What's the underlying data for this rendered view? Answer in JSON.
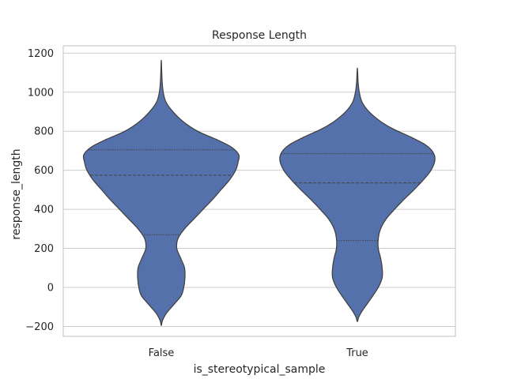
{
  "chart_data": {
    "type": "violin",
    "title": "Response Length",
    "xlabel": "is_stereotypical_sample",
    "ylabel": "response_length",
    "ylim": [
      -250,
      1230
    ],
    "yticks": [
      -200,
      0,
      200,
      400,
      600,
      800,
      1000,
      1200
    ],
    "ytick_labels": [
      "−200",
      "0",
      "200",
      "400",
      "600",
      "800",
      "1000",
      "1200"
    ],
    "grid": true,
    "color": "#5471ab",
    "categories": [
      "False",
      "True"
    ],
    "violins": [
      {
        "category": "False",
        "quartiles": [
          270,
          575,
          705
        ],
        "density": [
          [
            -195,
            0.0
          ],
          [
            -170,
            0.015
          ],
          [
            -130,
            0.07
          ],
          [
            -80,
            0.18
          ],
          [
            -40,
            0.26
          ],
          [
            0,
            0.29
          ],
          [
            50,
            0.305
          ],
          [
            100,
            0.3
          ],
          [
            150,
            0.25
          ],
          [
            200,
            0.2
          ],
          [
            250,
            0.215
          ],
          [
            300,
            0.3
          ],
          [
            350,
            0.42
          ],
          [
            400,
            0.54
          ],
          [
            450,
            0.66
          ],
          [
            500,
            0.77
          ],
          [
            550,
            0.88
          ],
          [
            600,
            0.96
          ],
          [
            640,
            0.99
          ],
          [
            680,
            1.0
          ],
          [
            720,
            0.9
          ],
          [
            760,
            0.7
          ],
          [
            800,
            0.47
          ],
          [
            850,
            0.28
          ],
          [
            900,
            0.15
          ],
          [
            950,
            0.06
          ],
          [
            1000,
            0.025
          ],
          [
            1050,
            0.012
          ],
          [
            1100,
            0.006
          ],
          [
            1150,
            0.002
          ],
          [
            1165,
            0.0
          ]
        ]
      },
      {
        "category": "True",
        "quartiles": [
          240,
          535,
          685
        ],
        "density": [
          [
            -175,
            0.0
          ],
          [
            -150,
            0.02
          ],
          [
            -110,
            0.08
          ],
          [
            -60,
            0.17
          ],
          [
            0,
            0.27
          ],
          [
            50,
            0.32
          ],
          [
            100,
            0.32
          ],
          [
            150,
            0.3
          ],
          [
            200,
            0.27
          ],
          [
            250,
            0.27
          ],
          [
            300,
            0.3
          ],
          [
            350,
            0.37
          ],
          [
            400,
            0.48
          ],
          [
            450,
            0.6
          ],
          [
            500,
            0.73
          ],
          [
            550,
            0.85
          ],
          [
            600,
            0.95
          ],
          [
            650,
            1.0
          ],
          [
            690,
            0.98
          ],
          [
            730,
            0.88
          ],
          [
            770,
            0.69
          ],
          [
            810,
            0.47
          ],
          [
            850,
            0.3
          ],
          [
            900,
            0.15
          ],
          [
            950,
            0.06
          ],
          [
            1000,
            0.025
          ],
          [
            1050,
            0.01
          ],
          [
            1100,
            0.004
          ],
          [
            1125,
            0.0
          ]
        ]
      }
    ]
  }
}
